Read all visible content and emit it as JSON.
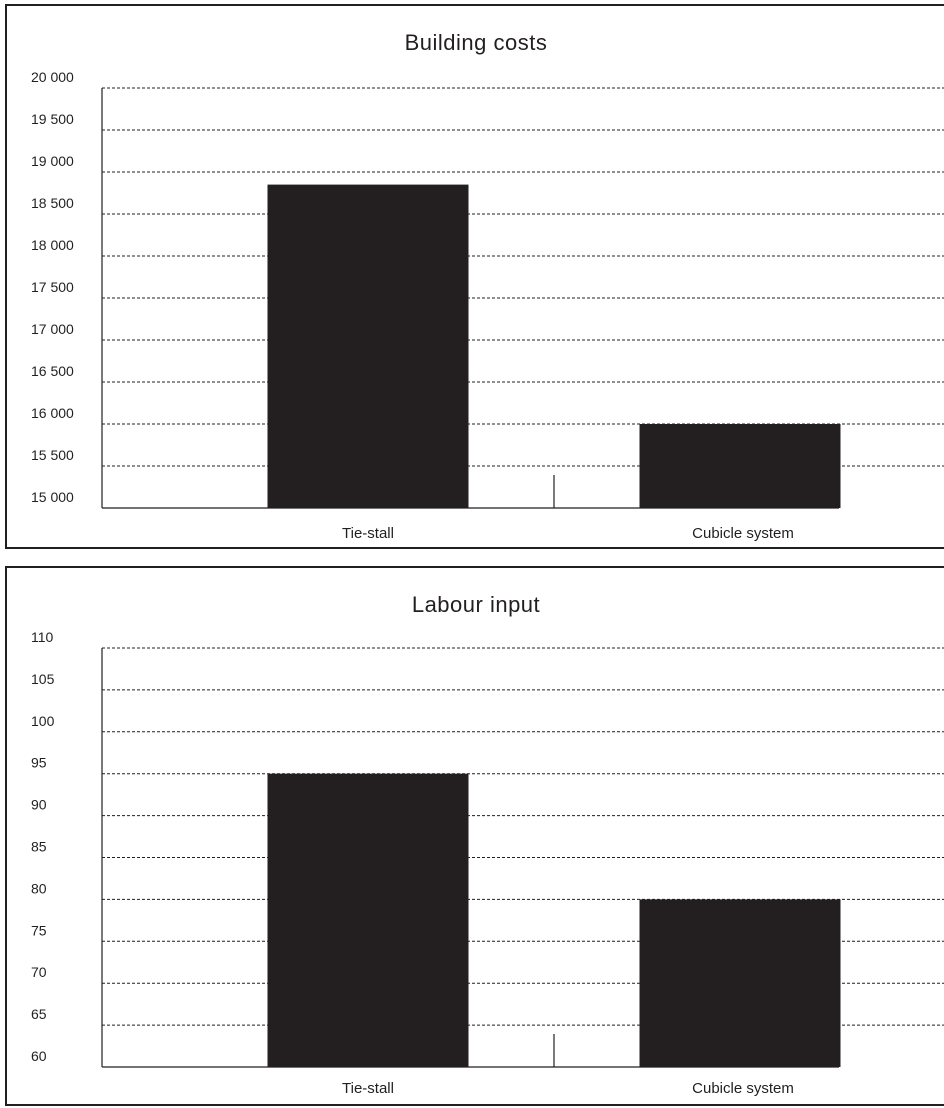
{
  "chart_data": [
    {
      "type": "bar",
      "title": "Building costs",
      "categories": [
        "Tie-stall",
        "Cubicle system"
      ],
      "values": [
        18850,
        16000
      ],
      "ylim": [
        15000,
        20000
      ],
      "yticks": [
        15000,
        15500,
        16000,
        16500,
        17000,
        17500,
        18000,
        18500,
        19000,
        19500,
        20000
      ],
      "ytick_labels": [
        "15 000",
        "15 500",
        "16 000",
        "16 500",
        "17 000",
        "17 500",
        "18 000",
        "18 500",
        "19 000",
        "19 500",
        "20 000"
      ],
      "grid": true,
      "bar_color": "#231f20"
    },
    {
      "type": "bar",
      "title": "Labour input",
      "categories": [
        "Tie-stall",
        "Cubicle system"
      ],
      "values": [
        95,
        80
      ],
      "ylim": [
        60,
        110
      ],
      "yticks": [
        60,
        65,
        70,
        75,
        80,
        85,
        90,
        95,
        100,
        105,
        110
      ],
      "ytick_labels": [
        "60",
        "65",
        "70",
        "75",
        "80",
        "85",
        "90",
        "95",
        "100",
        "105",
        "110"
      ],
      "grid": true,
      "bar_color": "#231f20"
    }
  ]
}
